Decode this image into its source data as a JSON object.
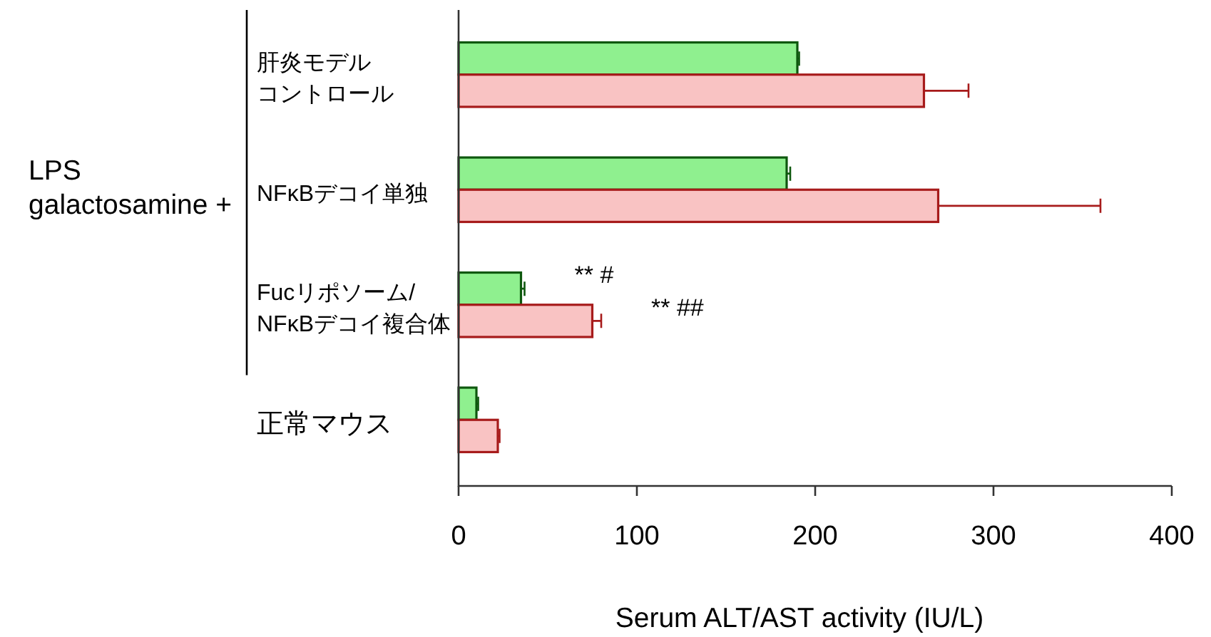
{
  "chart_data": {
    "type": "bar",
    "orientation": "horizontal",
    "categories": [
      "肝炎モデルコントロール",
      "NFκBデコイ単独",
      "Fucリポソーム/NFκBデコイ複合体",
      "正常マウス"
    ],
    "series": [
      {
        "color": "#8ff08f",
        "values": [
          190,
          184,
          35,
          10
        ],
        "errors": [
          1,
          2,
          2,
          1
        ]
      },
      {
        "color": "#f9c3c3",
        "values": [
          261,
          269,
          75,
          22
        ],
        "errors": [
          25,
          91,
          5,
          1
        ]
      }
    ],
    "xlim": [
      0,
      400
    ],
    "xticks": [
      0,
      100,
      200,
      300,
      400
    ],
    "xlabel": "Serum ALT/AST activity (IU/L)",
    "annotations": [
      "LPS\ngalactosamine +",
      "** #",
      "** ##"
    ]
  }
}
